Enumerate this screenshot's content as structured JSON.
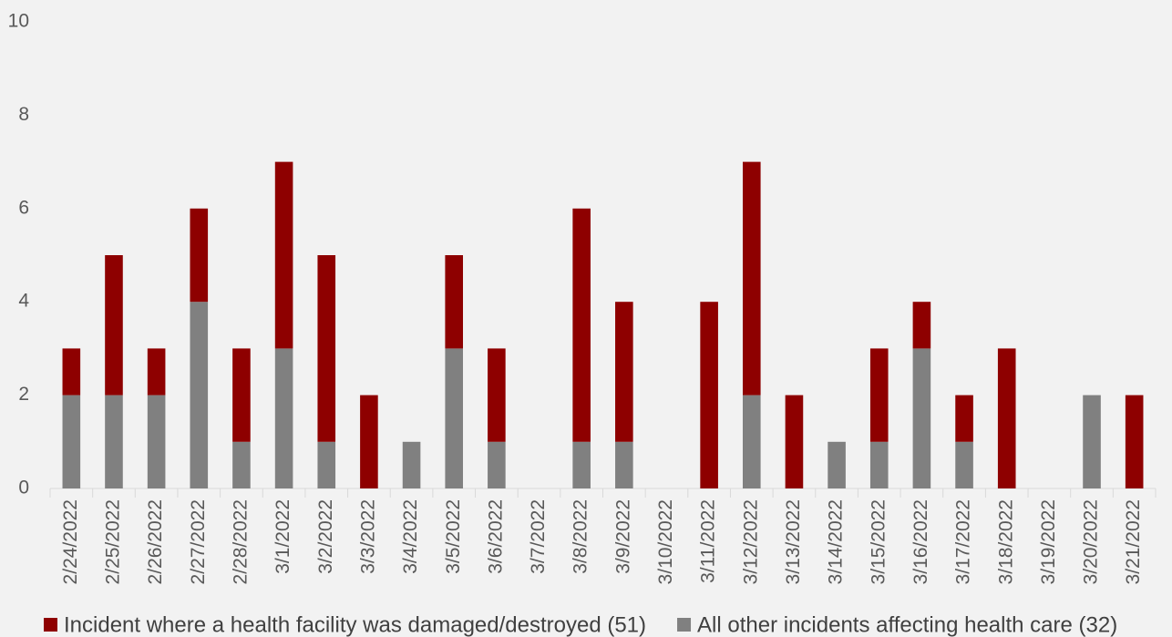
{
  "chart_data": {
    "type": "stacked_bar",
    "categories": [
      "2/24/2022",
      "2/25/2022",
      "2/26/2022",
      "2/27/2022",
      "2/28/2022",
      "3/1/2022",
      "3/2/2022",
      "3/3/2022",
      "3/4/2022",
      "3/5/2022",
      "3/6/2022",
      "3/7/2022",
      "3/8/2022",
      "3/9/2022",
      "3/10/2022",
      "3/11/2022",
      "3/12/2022",
      "3/13/2022",
      "3/14/2022",
      "3/15/2022",
      "3/16/2022",
      "3/17/2022",
      "3/18/2022",
      "3/19/2022",
      "3/20/2022",
      "3/21/2022"
    ],
    "series": [
      {
        "name": "Incident where a health facility was damaged/destroyed (51)",
        "color": "#8e0000",
        "values": [
          1,
          3,
          1,
          2,
          2,
          4,
          4,
          2,
          0,
          2,
          2,
          0,
          5,
          3,
          0,
          4,
          5,
          2,
          0,
          2,
          1,
          1,
          3,
          0,
          0,
          2
        ]
      },
      {
        "name": "All other incidents affecting health care (32)",
        "color": "#808080",
        "values": [
          2,
          2,
          2,
          4,
          1,
          3,
          1,
          0,
          1,
          3,
          1,
          0,
          1,
          1,
          0,
          0,
          2,
          0,
          1,
          1,
          3,
          1,
          0,
          0,
          2,
          0
        ]
      }
    ],
    "ylim": [
      0,
      10
    ],
    "yticks": [
      0,
      2,
      4,
      6,
      8,
      10
    ],
    "grid": false
  }
}
